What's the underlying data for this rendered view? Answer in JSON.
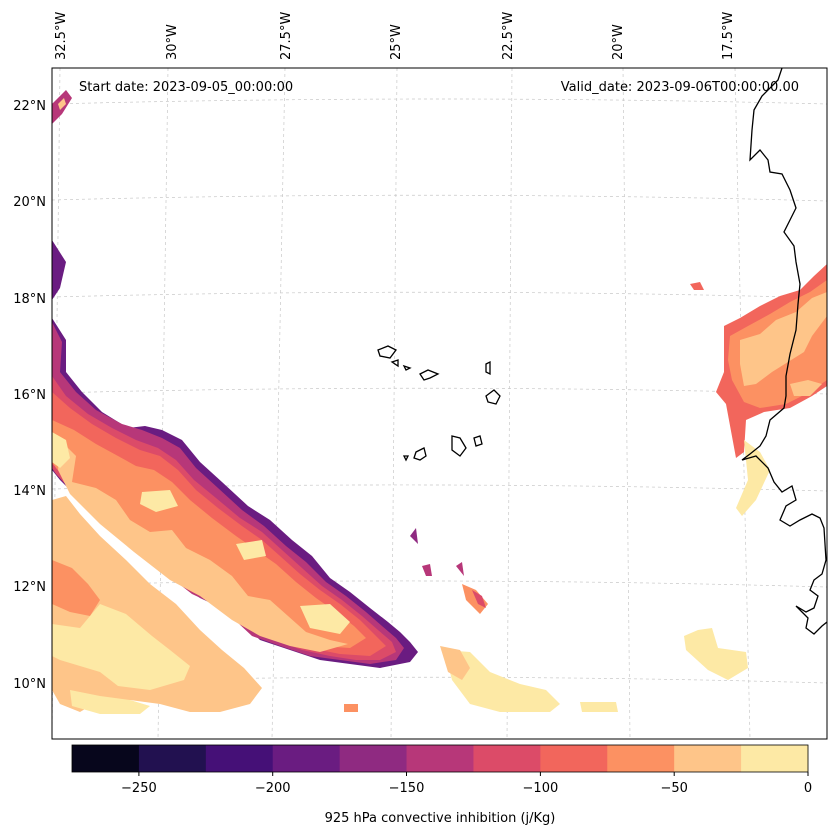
{
  "map": {
    "start_label": "Start date: 2023-09-05_00:00:00",
    "valid_label": "Valid_date: 2023-09-06T00:00:00.00",
    "lon_labels": [
      "32.5°W",
      "30°W",
      "27.5°W",
      "25°W",
      "22.5°W",
      "20°W",
      "17.5°W"
    ],
    "lat_labels": [
      "22°N",
      "20°N",
      "18°N",
      "16°N",
      "14°N",
      "12°N",
      "10°N"
    ],
    "variable": "925 hPa convective inhibition (j/Kg)",
    "colorbar": {
      "ticks": [
        "−250",
        "−200",
        "−150",
        "−100",
        "−50",
        "0"
      ],
      "levels": [
        -275,
        -250,
        -225,
        -200,
        -175,
        -150,
        -125,
        -100,
        -75,
        -50,
        -25,
        0
      ],
      "colors": [
        "#07061c",
        "#221150",
        "#451077",
        "#6a1c81",
        "#8f2a81",
        "#b73779",
        "#dc4b68",
        "#f2665c",
        "#fc9162",
        "#fec589",
        "#fde9a5"
      ]
    }
  }
}
